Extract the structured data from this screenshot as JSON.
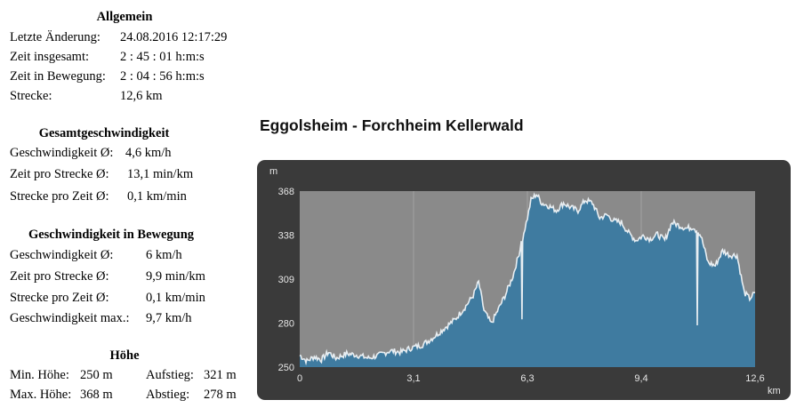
{
  "allgemein": {
    "title": "Allgemein",
    "rows": [
      {
        "label": "Letzte Änderung:",
        "value": "24.08.2016 12:17:29"
      },
      {
        "label": "Zeit insgesamt:",
        "value": "2 : 45 : 01 h:m:s"
      },
      {
        "label": "Zeit in Bewegung:",
        "value": "2 : 04 : 56 h:m:s"
      },
      {
        "label": "Strecke:",
        "value": "12,6 km"
      }
    ]
  },
  "gesamt": {
    "title": "Gesamtgeschwindigkeit",
    "rows": [
      {
        "label": "Geschwindigkeit Ø:",
        "value": "4,6 km/h"
      },
      {
        "label": "Zeit pro Strecke Ø:",
        "value": "13,1 min/km"
      },
      {
        "label": "Strecke pro Zeit Ø:",
        "value": "0,1 km/min"
      }
    ]
  },
  "bewegung": {
    "title": "Geschwindigkeit in Bewegung",
    "rows": [
      {
        "label": "Geschwindigkeit Ø:",
        "value": "6 km/h"
      },
      {
        "label": "Zeit pro Strecke Ø:",
        "value": "9,9 min/km"
      },
      {
        "label": "Strecke pro Zeit Ø:",
        "value": "0,1 km/min"
      },
      {
        "label": "Geschwindigkeit max.:",
        "value": "9,7 km/h"
      }
    ]
  },
  "hoehe": {
    "title": "Höhe",
    "min_label": "Min. Höhe:",
    "min_value": "250 m",
    "max_label": "Max. Höhe:",
    "max_value": "368 m",
    "up_label": "Aufstieg:",
    "up_value": "321 m",
    "down_label": "Abstieg:",
    "down_value": "278 m"
  },
  "chart_title": "Eggolsheim - Forchheim Kellerwald",
  "chart_data": {
    "type": "area",
    "title": "Eggolsheim - Forchheim Kellerwald",
    "ylabel": "m",
    "xlabel": "km",
    "ylim": [
      250,
      368
    ],
    "xlim": [
      0,
      12.6
    ],
    "y_ticks": [
      "250",
      "280",
      "309",
      "338",
      "368"
    ],
    "x_ticks": [
      "0",
      "3,1",
      "6,3",
      "9,4",
      "12,6"
    ],
    "x": [
      0,
      0.2,
      0.4,
      0.6,
      0.8,
      1.0,
      1.3,
      1.6,
      1.9,
      2.2,
      2.5,
      2.8,
      3.1,
      3.4,
      3.7,
      4.0,
      4.3,
      4.6,
      4.8,
      4.95,
      5.1,
      5.3,
      5.5,
      5.7,
      5.9,
      6.1,
      6.2,
      6.3,
      6.4,
      6.55,
      6.7,
      6.9,
      7.1,
      7.3,
      7.5,
      7.7,
      7.9,
      8.1,
      8.3,
      8.5,
      8.7,
      8.9,
      9.1,
      9.3,
      9.5,
      9.7,
      9.9,
      10.1,
      10.3,
      10.5,
      10.7,
      10.9,
      11.1,
      11.3,
      11.5,
      11.7,
      11.9,
      12.1,
      12.3,
      12.45,
      12.6
    ],
    "y": [
      258,
      254,
      257,
      255,
      260,
      256,
      259,
      258,
      256,
      258,
      261,
      260,
      263,
      265,
      270,
      276,
      282,
      291,
      298,
      307,
      288,
      279,
      289,
      299,
      311,
      329,
      340,
      350,
      362,
      366,
      360,
      358,
      355,
      360,
      357,
      355,
      362,
      360,
      350,
      352,
      348,
      347,
      340,
      335,
      338,
      336,
      339,
      335,
      347,
      345,
      343,
      344,
      338,
      320,
      318,
      328,
      325,
      325,
      300,
      296,
      300
    ],
    "dips": [
      {
        "x": 6.15,
        "y": 282
      },
      {
        "x": 11.0,
        "y": 278
      }
    ]
  }
}
